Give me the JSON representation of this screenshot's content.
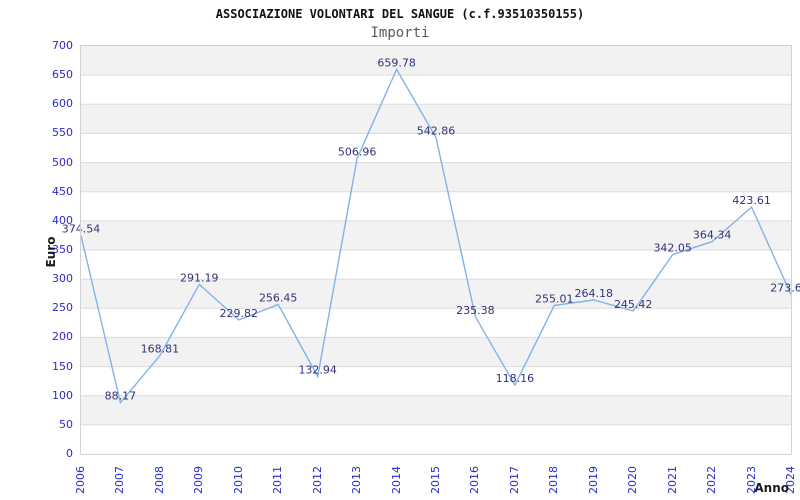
{
  "chart_data": {
    "type": "line",
    "title": "ASSOCIAZIONE VOLONTARI DEL SANGUE (c.f.93510350155)",
    "subtitle": "Importi",
    "xlabel": "Anno",
    "ylabel": "Euro",
    "x": [
      "2006",
      "2007",
      "2008",
      "2009",
      "2010",
      "2011",
      "2012",
      "2013",
      "2014",
      "2015",
      "2016",
      "2017",
      "2018",
      "2019",
      "2020",
      "2021",
      "2022",
      "2023",
      "2024"
    ],
    "series": [
      {
        "name": "Importi",
        "values": [
          374.54,
          88.17,
          168.81,
          291.19,
          229.82,
          256.45,
          132.94,
          506.96,
          659.78,
          542.86,
          235.38,
          118.16,
          255.01,
          264.18,
          245.42,
          342.05,
          364.34,
          423.61,
          273.6
        ]
      }
    ],
    "ylim": [
      0,
      700
    ],
    "ytick_step": 50,
    "grid": "horizontal-bands",
    "legend": false,
    "point_labels_visible": true,
    "colors": {
      "line": "#84b2e8",
      "data_label": "#333377",
      "tick_label": "#2a2ace",
      "band": "#f2f2f2",
      "grid": "#dcdcdc",
      "border": "#d2d2d2",
      "title": "#111111",
      "subtitle": "#5a5a5a",
      "axis_title": "#1a1a1a"
    }
  }
}
